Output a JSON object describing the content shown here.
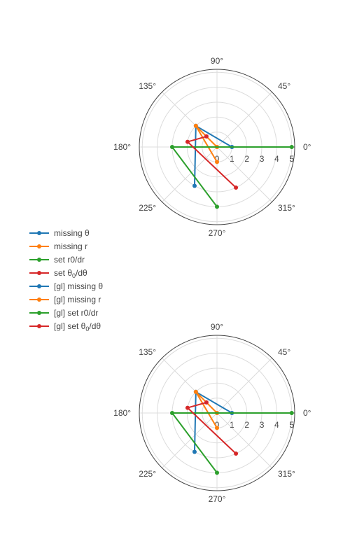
{
  "chart_data": [
    {
      "type": "line",
      "subtype": "polar",
      "angular_unit": "degrees",
      "radial_range": [
        0,
        5.2
      ],
      "radial_ticks": [
        "0",
        "1",
        "2",
        "3",
        "4",
        "5"
      ],
      "angular_ticks": [
        "0°",
        "45°",
        "90°",
        "135°",
        "180°",
        "225°",
        "270°",
        "315°"
      ],
      "grid": true,
      "series": [
        {
          "name": "missing θ",
          "color": "#1f77b4",
          "points": [
            {
              "r": 1,
              "theta": 0
            },
            {
              "r": 2,
              "theta": 135
            },
            {
              "r": 3,
              "theta": 240
            }
          ]
        },
        {
          "name": "missing r",
          "color": "#ff7f0e",
          "points": [
            {
              "r": 0,
              "theta": 0
            },
            {
              "r": 2,
              "theta": 135
            },
            {
              "r": 1,
              "theta": 270
            }
          ]
        },
        {
          "name": "set r0/dr",
          "color": "#2ca02c",
          "points": [
            {
              "r": 5,
              "theta": 0
            },
            {
              "r": 3,
              "theta": 180
            },
            {
              "r": 4,
              "theta": 270
            }
          ]
        },
        {
          "name": "set θ0/dθ",
          "color": "#d62728",
          "points": [
            {
              "r": 1,
              "theta": 135
            },
            {
              "r": 2,
              "theta": 170
            },
            {
              "r": 3,
              "theta": 295
            }
          ]
        }
      ]
    },
    {
      "type": "line",
      "subtype": "polar",
      "angular_unit": "degrees",
      "radial_range": [
        0,
        5.2
      ],
      "radial_ticks": [
        "0",
        "1",
        "2",
        "3",
        "4",
        "5"
      ],
      "angular_ticks": [
        "0°",
        "45°",
        "90°",
        "135°",
        "180°",
        "225°",
        "270°",
        "315°"
      ],
      "grid": true,
      "series": [
        {
          "name": "[gl] missing θ",
          "color": "#1f77b4",
          "points": [
            {
              "r": 1,
              "theta": 0
            },
            {
              "r": 2,
              "theta": 135
            },
            {
              "r": 3,
              "theta": 240
            }
          ]
        },
        {
          "name": "[gl] missing r",
          "color": "#ff7f0e",
          "points": [
            {
              "r": 0,
              "theta": 0
            },
            {
              "r": 2,
              "theta": 135
            },
            {
              "r": 1,
              "theta": 270
            }
          ]
        },
        {
          "name": "[gl] set r0/dr",
          "color": "#2ca02c",
          "points": [
            {
              "r": 5,
              "theta": 0
            },
            {
              "r": 3,
              "theta": 180
            },
            {
              "r": 4,
              "theta": 270
            }
          ]
        },
        {
          "name": "[gl] set θ0/dθ",
          "color": "#d62728",
          "points": [
            {
              "r": 1,
              "theta": 135
            },
            {
              "r": 2,
              "theta": 170
            },
            {
              "r": 3,
              "theta": 295
            }
          ]
        }
      ]
    }
  ],
  "legend": {
    "placement": "left",
    "items": [
      {
        "text": "missing θ",
        "sub": "",
        "after": "",
        "color": "#1f77b4"
      },
      {
        "text": "missing r",
        "sub": "",
        "after": "",
        "color": "#ff7f0e"
      },
      {
        "text": "set r0/dr",
        "sub": "",
        "after": "",
        "color": "#2ca02c"
      },
      {
        "text": "set θ",
        "sub": "0",
        "after": "/dθ",
        "color": "#d62728"
      },
      {
        "text": "[gl] missing θ",
        "sub": "",
        "after": "",
        "color": "#1f77b4"
      },
      {
        "text": "[gl] missing r",
        "sub": "",
        "after": "",
        "color": "#ff7f0e"
      },
      {
        "text": "[gl] set r0/dr",
        "sub": "",
        "after": "",
        "color": "#2ca02c"
      },
      {
        "text": "[gl] set θ",
        "sub": "0",
        "after": "/dθ",
        "color": "#d62728"
      }
    ]
  }
}
